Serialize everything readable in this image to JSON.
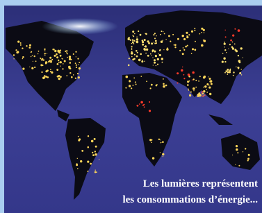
{
  "caption": {
    "line1": "Les lumières représentent",
    "line2": "les consommations d’énergie..."
  }
}
